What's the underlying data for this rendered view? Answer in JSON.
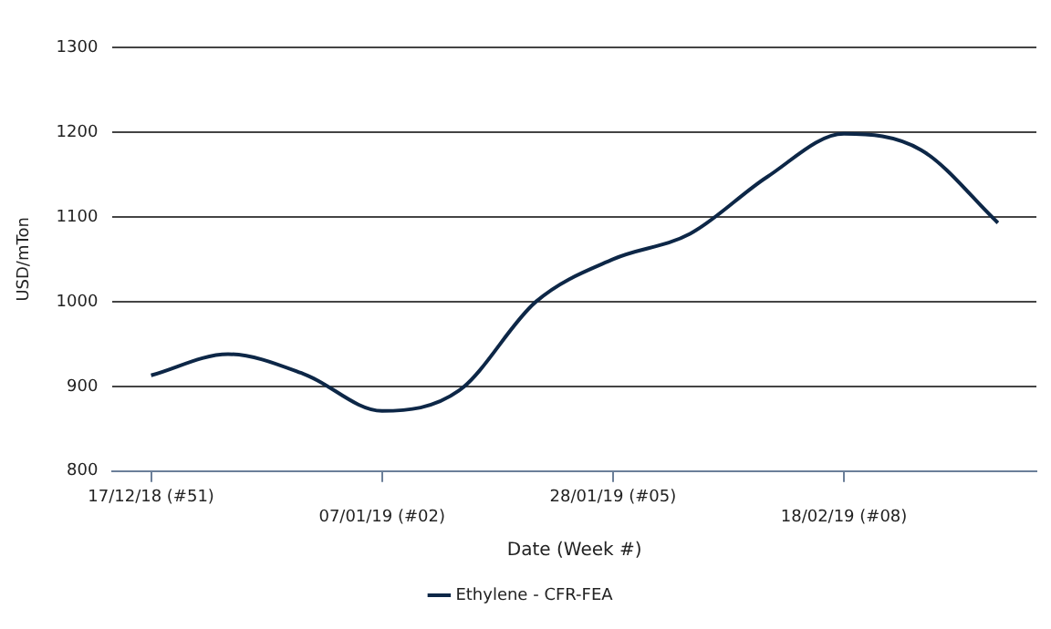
{
  "chart_data": {
    "type": "line",
    "xlabel": "Date (Week #)",
    "ylabel": "USD/mTon",
    "categories": [
      "17/12/18 (#51)",
      null,
      null,
      "07/01/19 (#02)",
      null,
      null,
      "28/01/19 (#05)",
      null,
      null,
      "18/02/19 (#08)",
      null,
      null
    ],
    "series": [
      {
        "name": "Ethylene - CFR-FEA",
        "color": "#0d2747",
        "values": [
          913,
          938,
          914,
          871,
          895,
          1000,
          1050,
          1080,
          1147,
          1198,
          1179,
          1093
        ]
      }
    ],
    "ylim": [
      800,
      1300
    ],
    "yticks": [
      800,
      900,
      1000,
      1100,
      1200,
      1300
    ],
    "grid": "y",
    "legend": "bottom",
    "marker": "none",
    "line_style": "solid"
  }
}
